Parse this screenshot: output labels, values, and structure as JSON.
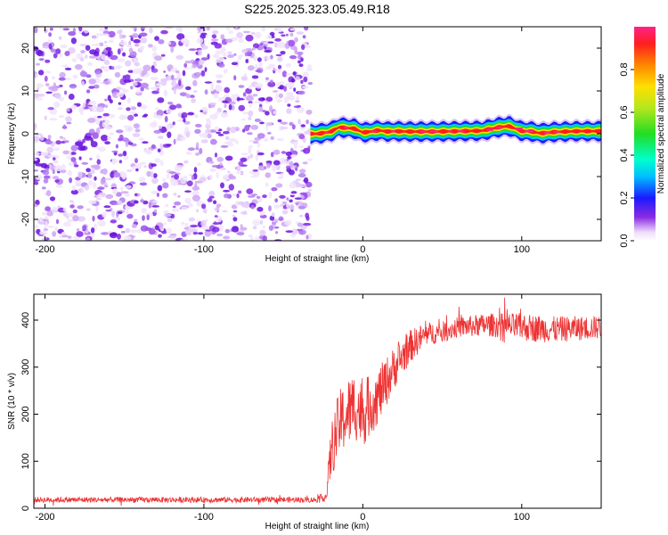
{
  "chart_data": [
    {
      "type": "heatmap",
      "title": "S225.2025.323.05.49.R18",
      "xlabel": "Height of straight line (km)",
      "ylabel": "Frequency (Hz)",
      "xlim": [
        -207,
        150
      ],
      "ylim": [
        -25,
        25
      ],
      "xticks": [
        -200,
        -100,
        0,
        100
      ],
      "yticks": [
        -20,
        -10,
        0,
        10,
        20
      ],
      "colorbar": {
        "label": "Normalized spectral amplitude",
        "range": [
          0,
          1
        ],
        "ticks": [
          0.0,
          0.2,
          0.4,
          0.6,
          0.8
        ],
        "tick_labels": [
          "0.0",
          "0.2",
          "0.4",
          "0.6",
          "0.8"
        ]
      },
      "noise_region_x": [
        -207,
        -33
      ],
      "signal_ridge": {
        "x": [
          -33,
          -28,
          -20,
          -15,
          -5,
          0,
          5,
          10,
          15,
          20,
          30,
          45,
          60,
          75,
          85,
          92,
          100,
          105,
          112,
          120,
          135,
          150
        ],
        "frequency": [
          0,
          0,
          0.5,
          1.5,
          1.2,
          0.3,
          0.5,
          0.8,
          0.5,
          0.6,
          0.5,
          0.5,
          0.6,
          0.7,
          1.5,
          1.8,
          0.6,
          0.6,
          0.1,
          0.4,
          0.6,
          0.6
        ]
      }
    },
    {
      "type": "line",
      "title": "",
      "xlabel": "Height of straight line (km)",
      "ylabel": "SNR (10 * v/v)",
      "xlim": [
        -207,
        150
      ],
      "ylim": [
        0,
        455
      ],
      "xticks": [
        -200,
        -100,
        0,
        100
      ],
      "yticks": [
        0,
        100,
        200,
        300,
        400
      ],
      "series": [
        {
          "name": "SNR",
          "color": "#ee3333",
          "envelope_x": [
            -207,
            -30,
            -23,
            -20,
            -15,
            -10,
            -5,
            0,
            10,
            20,
            30,
            40,
            50,
            60,
            80,
            100,
            120,
            150
          ],
          "envelope_mean": [
            18,
            18,
            25,
            120,
            180,
            200,
            220,
            200,
            240,
            300,
            345,
            370,
            375,
            385,
            390,
            385,
            380,
            385
          ],
          "envelope_spread": [
            6,
            6,
            10,
            60,
            70,
            75,
            75,
            70,
            60,
            45,
            35,
            25,
            22,
            22,
            25,
            30,
            28,
            25
          ]
        }
      ]
    }
  ]
}
